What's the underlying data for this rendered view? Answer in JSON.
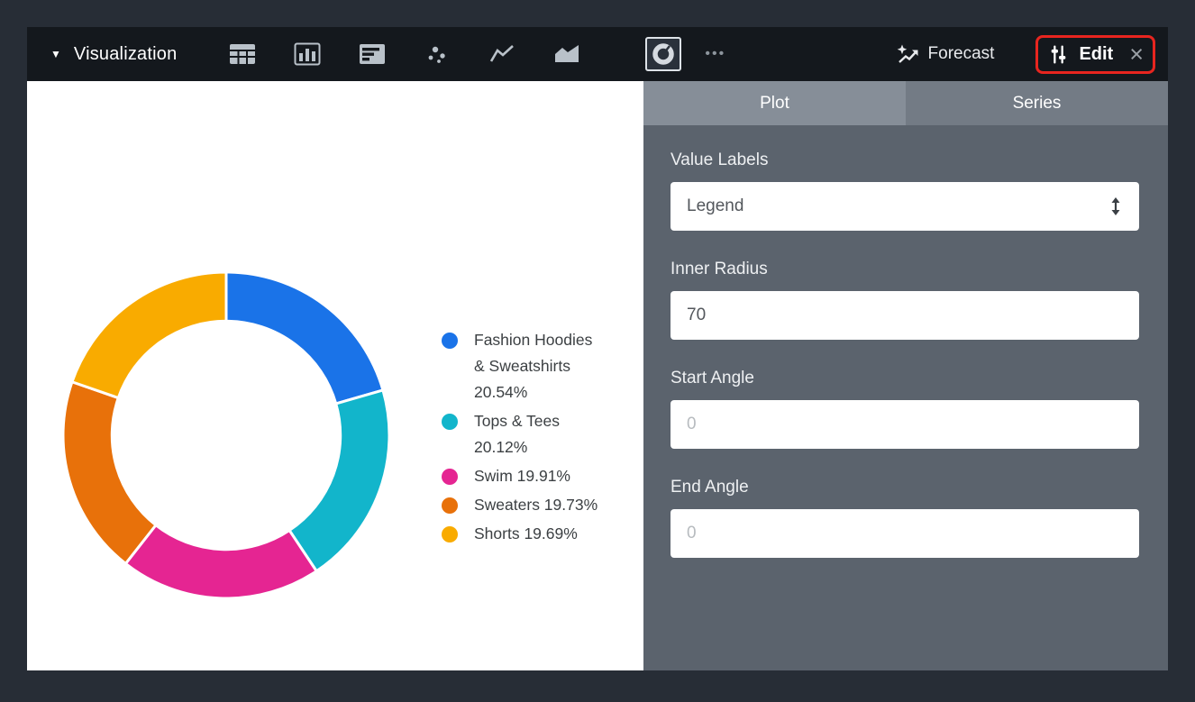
{
  "toolbar": {
    "collapse_icon": "▼",
    "title": "Visualization",
    "chart_type_icons": [
      "table-icon",
      "column-chart-icon",
      "bar-chart-icon",
      "scatter-chart-icon",
      "line-chart-icon",
      "area-chart-icon",
      "donut-chart-icon"
    ],
    "selected_chart_type": "donut",
    "more_label": "•••",
    "forecast_label": "Forecast",
    "edit_label": "Edit",
    "close_label": "×"
  },
  "panel": {
    "tabs": [
      {
        "label": "Plot",
        "active": true
      },
      {
        "label": "Series",
        "active": false
      }
    ],
    "value_labels": {
      "label": "Value Labels",
      "value": "Legend"
    },
    "inner_radius": {
      "label": "Inner Radius",
      "value": "70"
    },
    "start_angle": {
      "label": "Start Angle",
      "placeholder": "0"
    },
    "end_angle": {
      "label": "End Angle",
      "placeholder": "0"
    }
  },
  "chart_data": {
    "type": "pie",
    "subtype": "donut",
    "inner_radius_pct": 70,
    "start_angle_deg": 0,
    "legend_position": "right",
    "categories": [
      "Fashion Hoodies & Sweatshirts",
      "Tops & Tees",
      "Swim",
      "Sweaters",
      "Shorts"
    ],
    "values": [
      20.54,
      20.12,
      19.91,
      19.73,
      19.69
    ],
    "colors": [
      "#1a73e8",
      "#12b5cb",
      "#e52592",
      "#e8710a",
      "#f9ab00"
    ],
    "legend_labels": [
      "Fashion Hoodies & Sweatshirts 20.54%",
      "Tops & Tees 20.12%",
      "Swim 19.91%",
      "Sweaters 19.73%",
      "Shorts 19.69%"
    ]
  },
  "colors": {
    "annotation_red": "#e8251f",
    "toolbar_bg": "#14181d",
    "panel_bg": "#5b636d",
    "frame_bg": "#272d36",
    "legend_text": "#3c4043"
  }
}
